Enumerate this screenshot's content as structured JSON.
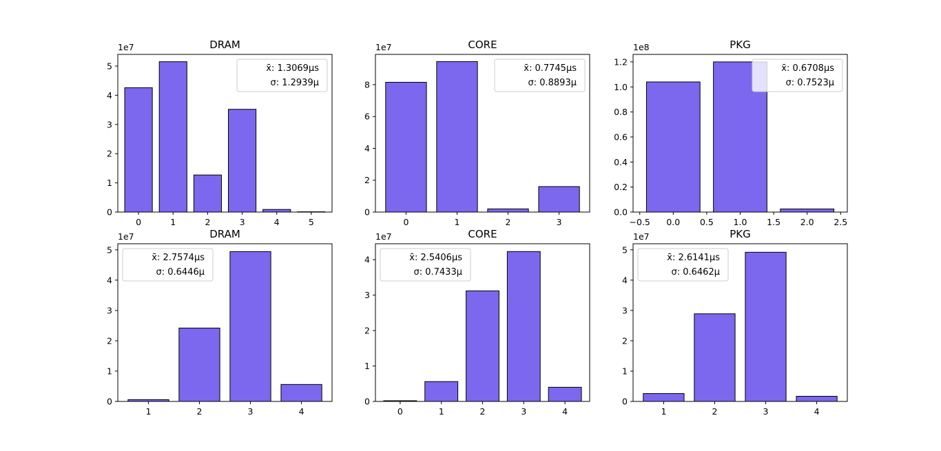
{
  "colors": {
    "bar_fill": "#7b68ee",
    "bar_edge": "#000000"
  },
  "chart_data": [
    {
      "type": "bar",
      "title": "DRAM",
      "categories": [
        0,
        1,
        2,
        3,
        4,
        5
      ],
      "values": [
        42600000,
        51500000,
        12700000,
        35200000,
        900000,
        100000
      ],
      "bar_width": 0.8,
      "xlim": [
        -0.6,
        5.6
      ],
      "ylim": [
        0,
        54000000
      ],
      "xticks": [
        0,
        1,
        2,
        3,
        4,
        5
      ],
      "xtick_labels": [
        "0",
        "1",
        "2",
        "3",
        "4",
        "5"
      ],
      "yticks": [
        0,
        10000000,
        20000000,
        30000000,
        40000000,
        50000000
      ],
      "ytick_labels": [
        "0",
        "1",
        "2",
        "3",
        "4",
        "5"
      ],
      "y_offset_label": "1e7",
      "legend_position": "upper right",
      "legend": [
        "x̄: 1.3069μs",
        "σ: 1.2939μ"
      ]
    },
    {
      "type": "bar",
      "title": "CORE",
      "categories": [
        0,
        1,
        2,
        3
      ],
      "values": [
        81500000,
        94500000,
        2000000,
        16000000
      ],
      "bar_width": 0.8,
      "xlim": [
        -0.6,
        3.6
      ],
      "ylim": [
        0,
        99000000
      ],
      "xticks": [
        0,
        1,
        2,
        3
      ],
      "xtick_labels": [
        "0",
        "1",
        "2",
        "3"
      ],
      "yticks": [
        0,
        20000000,
        40000000,
        60000000,
        80000000
      ],
      "ytick_labels": [
        "0",
        "2",
        "4",
        "6",
        "8"
      ],
      "y_offset_label": "1e7",
      "legend_position": "upper right",
      "legend": [
        "x̄: 0.7745μs",
        "σ: 0.8893μ"
      ]
    },
    {
      "type": "bar",
      "title": "PKG",
      "categories": [
        0,
        1,
        2
      ],
      "values": [
        104000000,
        120000000,
        2500000
      ],
      "bar_width": 0.8,
      "xlim": [
        -0.6,
        2.6
      ],
      "ylim": [
        0,
        126000000
      ],
      "xticks": [
        -0.5,
        0.0,
        0.5,
        1.0,
        1.5,
        2.0,
        2.5
      ],
      "xtick_labels": [
        "−0.5",
        "0.0",
        "0.5",
        "1.0",
        "1.5",
        "2.0",
        "2.5"
      ],
      "yticks": [
        0,
        20000000,
        40000000,
        60000000,
        80000000,
        100000000,
        120000000
      ],
      "ytick_labels": [
        "0.0",
        "0.2",
        "0.4",
        "0.6",
        "0.8",
        "1.0",
        "1.2"
      ],
      "y_offset_label": "1e8",
      "legend_position": "upper right",
      "legend": [
        "x̄: 0.6708μs",
        "σ: 0.7523μ"
      ]
    },
    {
      "type": "bar",
      "title": "DRAM",
      "categories": [
        1,
        2,
        3,
        4
      ],
      "values": [
        600000,
        24200000,
        49400000,
        5600000
      ],
      "bar_width": 0.8,
      "xlim": [
        0.4,
        4.6
      ],
      "ylim": [
        0,
        52000000
      ],
      "xticks": [
        1,
        2,
        3,
        4
      ],
      "xtick_labels": [
        "1",
        "2",
        "3",
        "4"
      ],
      "yticks": [
        0,
        10000000,
        20000000,
        30000000,
        40000000,
        50000000
      ],
      "ytick_labels": [
        "0",
        "1",
        "2",
        "3",
        "4",
        "5"
      ],
      "y_offset_label": "1e7",
      "legend_position": "upper left",
      "legend": [
        "x̄: 2.7574μs",
        "σ: 0.6446μ"
      ]
    },
    {
      "type": "bar",
      "title": "CORE",
      "categories": [
        0,
        1,
        2,
        3,
        4
      ],
      "values": [
        200000,
        5600000,
        31200000,
        42300000,
        4000000
      ],
      "bar_width": 0.8,
      "xlim": [
        -0.6,
        4.6
      ],
      "ylim": [
        0,
        44500000
      ],
      "xticks": [
        0,
        1,
        2,
        3,
        4
      ],
      "xtick_labels": [
        "0",
        "1",
        "2",
        "3",
        "4"
      ],
      "yticks": [
        0,
        10000000,
        20000000,
        30000000,
        40000000
      ],
      "ytick_labels": [
        "0",
        "1",
        "2",
        "3",
        "4"
      ],
      "y_offset_label": "1e7",
      "legend_position": "upper left",
      "legend": [
        "x̄: 2.5406μs",
        "σ: 0.7433μ"
      ]
    },
    {
      "type": "bar",
      "title": "PKG",
      "categories": [
        1,
        2,
        3,
        4
      ],
      "values": [
        2600000,
        28900000,
        49200000,
        1700000
      ],
      "bar_width": 0.8,
      "xlim": [
        0.4,
        4.6
      ],
      "ylim": [
        0,
        52000000
      ],
      "xticks": [
        1,
        2,
        3,
        4
      ],
      "xtick_labels": [
        "1",
        "2",
        "3",
        "4"
      ],
      "yticks": [
        0,
        10000000,
        20000000,
        30000000,
        40000000,
        50000000
      ],
      "ytick_labels": [
        "0",
        "1",
        "2",
        "3",
        "4",
        "5"
      ],
      "y_offset_label": "1e7",
      "legend_position": "upper left",
      "legend": [
        "x̄: 2.6141μs",
        "σ: 0.6462μ"
      ]
    }
  ]
}
